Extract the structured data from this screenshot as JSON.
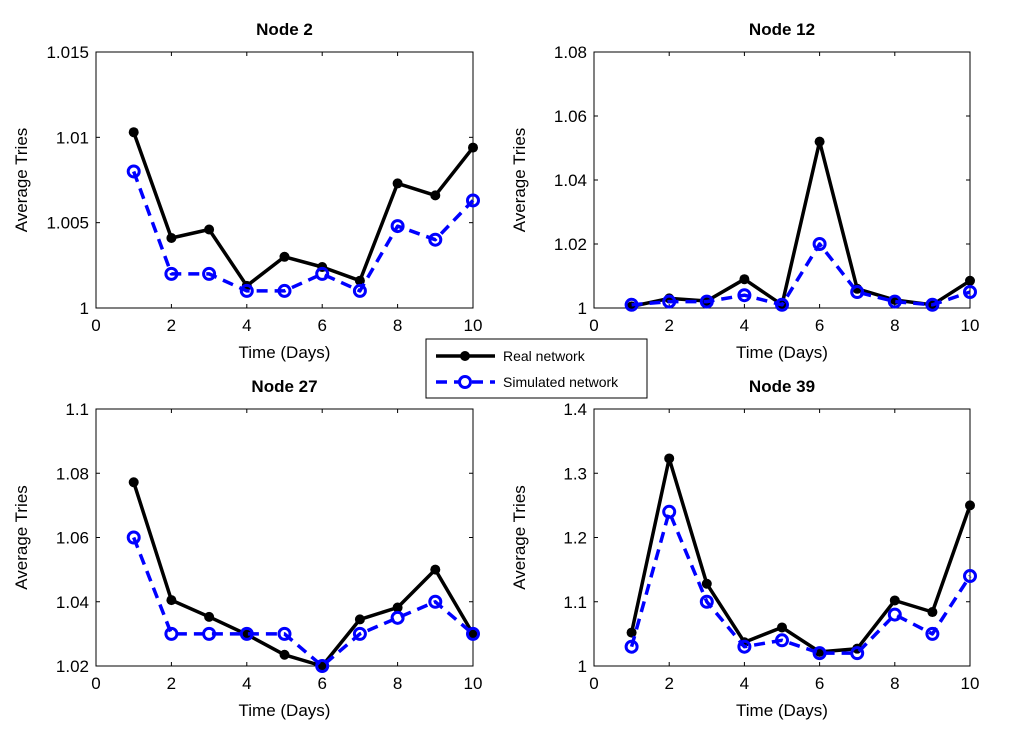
{
  "legend": {
    "real_label": "Real network",
    "sim_label": "Simulated network",
    "real_color": "#000000",
    "sim_color": "#0000ff"
  },
  "chart_data": [
    {
      "type": "line",
      "title": "Node 2",
      "xlabel": "Time (Days)",
      "ylabel": "Average Tries",
      "xlim": [
        0,
        10
      ],
      "ylim": [
        1,
        1.015
      ],
      "xticks": [
        0,
        2,
        4,
        6,
        8,
        10
      ],
      "yticks": [
        1,
        1.005,
        1.01,
        1.015
      ],
      "ytick_labels": [
        "1",
        "1.005",
        "1.01",
        "1.015"
      ],
      "x": [
        1,
        2,
        3,
        4,
        5,
        6,
        7,
        8,
        9,
        10
      ],
      "series": [
        {
          "name": "Real network",
          "values": [
            1.0103,
            1.0041,
            1.0046,
            1.0013,
            1.003,
            1.0024,
            1.0016,
            1.0073,
            1.0066,
            1.0094
          ]
        },
        {
          "name": "Simulated network",
          "values": [
            1.008,
            1.002,
            1.002,
            1.001,
            1.001,
            1.002,
            1.001,
            1.0048,
            1.004,
            1.0063
          ]
        }
      ]
    },
    {
      "type": "line",
      "title": "Node 12",
      "xlabel": "Time (Days)",
      "ylabel": "Average Tries",
      "xlim": [
        0,
        10
      ],
      "ylim": [
        1,
        1.08
      ],
      "xticks": [
        0,
        2,
        4,
        6,
        8,
        10
      ],
      "yticks": [
        1,
        1.02,
        1.04,
        1.06,
        1.08
      ],
      "ytick_labels": [
        "1",
        "1.02",
        "1.04",
        "1.06",
        "1.08"
      ],
      "x": [
        1,
        2,
        3,
        4,
        5,
        6,
        7,
        8,
        9,
        10
      ],
      "series": [
        {
          "name": "Real network",
          "values": [
            1.0005,
            1.003,
            1.0022,
            1.009,
            1.001,
            1.052,
            1.006,
            1.0025,
            1.001,
            1.0085
          ]
        },
        {
          "name": "Simulated network",
          "values": [
            1.001,
            1.002,
            1.002,
            1.004,
            1.001,
            1.02,
            1.005,
            1.002,
            1.001,
            1.005
          ]
        }
      ]
    },
    {
      "type": "line",
      "title": "Node 27",
      "xlabel": "Time (Days)",
      "ylabel": "Average Tries",
      "xlim": [
        0,
        10
      ],
      "ylim": [
        1.02,
        1.1
      ],
      "xticks": [
        0,
        2,
        4,
        6,
        8,
        10
      ],
      "yticks": [
        1.02,
        1.04,
        1.06,
        1.08,
        1.1
      ],
      "ytick_labels": [
        "1.02",
        "1.04",
        "1.06",
        "1.08",
        "1.1"
      ],
      "x": [
        1,
        2,
        3,
        4,
        5,
        6,
        7,
        8,
        9,
        10
      ],
      "series": [
        {
          "name": "Real network",
          "values": [
            1.0772,
            1.0405,
            1.0353,
            1.0298,
            1.0235,
            1.02,
            1.0345,
            1.0382,
            1.05,
            1.03
          ]
        },
        {
          "name": "Simulated network",
          "values": [
            1.06,
            1.03,
            1.03,
            1.03,
            1.03,
            1.02,
            1.03,
            1.035,
            1.04,
            1.03
          ]
        }
      ]
    },
    {
      "type": "line",
      "title": "Node 39",
      "xlabel": "Time (Days)",
      "ylabel": "Average Tries",
      "xlim": [
        0,
        10
      ],
      "ylim": [
        1,
        1.4
      ],
      "xticks": [
        0,
        2,
        4,
        6,
        8,
        10
      ],
      "yticks": [
        1,
        1.1,
        1.2,
        1.3,
        1.4
      ],
      "ytick_labels": [
        "1",
        "1.1",
        "1.2",
        "1.3",
        "1.4"
      ],
      "x": [
        1,
        2,
        3,
        4,
        5,
        6,
        7,
        8,
        9,
        10
      ],
      "series": [
        {
          "name": "Real network",
          "values": [
            1.052,
            1.323,
            1.128,
            1.037,
            1.06,
            1.022,
            1.027,
            1.102,
            1.084,
            1.25
          ]
        },
        {
          "name": "Simulated network",
          "values": [
            1.03,
            1.24,
            1.1,
            1.03,
            1.04,
            1.02,
            1.02,
            1.08,
            1.05,
            1.14
          ]
        }
      ]
    }
  ]
}
